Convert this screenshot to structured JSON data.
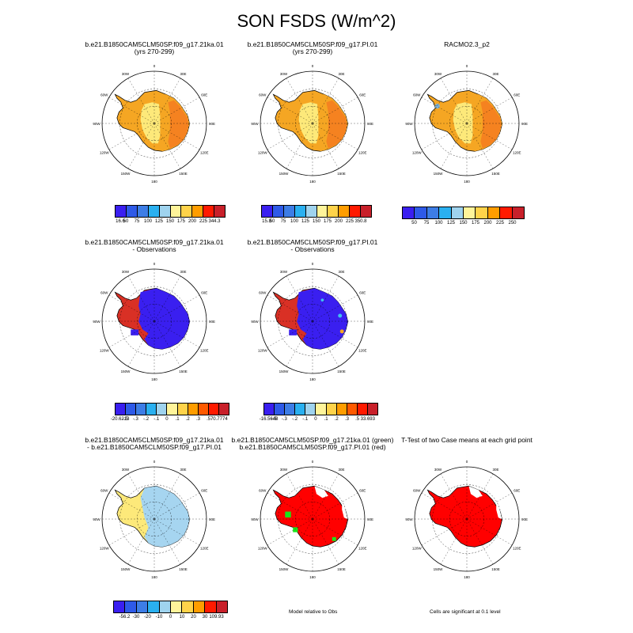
{
  "title": "SON FSDS (W/m^2)",
  "colors": {
    "blue": "#3a1ff0",
    "red": "#d93025",
    "orange": "#f58220",
    "light_orange": "#f5a623",
    "yellow": "#fde97a",
    "light_blue": "#a6d5f0",
    "green": "#19e61a",
    "pure_red": "#ff0000"
  },
  "map_labels": {
    "top": "0",
    "bottom": "180",
    "ring": [
      "30E",
      "60E",
      "90E",
      "120E",
      "150E",
      "150W",
      "120W",
      "90W",
      "60W",
      "30W"
    ]
  },
  "panels": [
    {
      "id": "p1",
      "title1": "b.e21.B1850CAM5CLM50SP.f09_g17.21ka.01",
      "title2": "(yrs 270-299)",
      "kind": "orange"
    },
    {
      "id": "p2",
      "title1": "b.e21.B1850CAM5CLM50SP.f09_g17.PI.01",
      "title2": "(yrs 270-299)",
      "kind": "orange2"
    },
    {
      "id": "p3",
      "title1": "RACMO2.3_p2",
      "title2": "",
      "kind": "orange3"
    },
    {
      "id": "p4",
      "title1": "b.e21.B1850CAM5CLM50SP.f09_g17.21ka.01",
      "title2": "- Observations",
      "kind": "bluered"
    },
    {
      "id": "p5",
      "title1": "b.e21.B1850CAM5CLM50SP.f09_g17.PI.01",
      "title2": "- Observations",
      "kind": "bluered2"
    },
    {
      "id": "p6",
      "title1": "b.e21.B1850CAM5CLM50SP.f09_g17.21ka.01",
      "title2": "- b.e21.B1850CAM5CLM50SP.f09_g17.PI.01",
      "kind": "diff"
    },
    {
      "id": "p7",
      "title1": "b.e21.B1850CAM5CLM50SP.f09_g17.21ka.01 (green)",
      "title2": "b.e21.B1850CAM5CLM50SP.f09_g17.PI.01 (red)",
      "kind": "green"
    },
    {
      "id": "p8",
      "title1": "T-Test of two Case means at each grid point",
      "title2": "",
      "kind": "ttest"
    }
  ],
  "colorbars": [
    {
      "id": "cb1",
      "labels": [
        "16.6",
        "50",
        "75",
        "100",
        "125",
        "150",
        "175",
        "200",
        "225",
        "344.3"
      ],
      "colors": [
        "#3a1ff0",
        "#2e5ae8",
        "#3d7de6",
        "#2ab0f0",
        "#9fd3ee",
        "#fff49a",
        "#ffd34a",
        "#ff9d00",
        "#ff1a00",
        "#c8202a"
      ]
    },
    {
      "id": "cb2",
      "labels": [
        "15.8",
        "50",
        "75",
        "100",
        "125",
        "150",
        "175",
        "200",
        "225",
        "350.8"
      ],
      "colors": [
        "#3a1ff0",
        "#2e5ae8",
        "#3d7de6",
        "#2ab0f0",
        "#9fd3ee",
        "#fff49a",
        "#ffd34a",
        "#ff9d00",
        "#ff1a00",
        "#c8202a"
      ]
    },
    {
      "id": "cb3",
      "labels": [
        "50",
        "75",
        "100",
        "125",
        "150",
        "175",
        "200",
        "225",
        "250"
      ],
      "colors": [
        "#3a1ff0",
        "#2e5ae8",
        "#3d7de6",
        "#2ab0f0",
        "#9fd3ee",
        "#fff49a",
        "#ffd34a",
        "#ff9d00",
        "#ff1a00",
        "#c8202a"
      ]
    },
    {
      "id": "cb4",
      "labels": [
        "-20.6213",
        "-.5",
        "-.3",
        "-.2",
        "-.1",
        "0",
        ".1",
        ".2",
        ".3",
        ".5",
        "70.7774"
      ],
      "colors": [
        "#3a1ff0",
        "#2e5ae8",
        "#3d7de6",
        "#2ab0f0",
        "#9fd3ee",
        "#fff49a",
        "#ffd34a",
        "#ff9d00",
        "#ff5a00",
        "#ff1a00",
        "#c8202a"
      ]
    },
    {
      "id": "cb5",
      "labels": [
        "-16.5648",
        "-.5",
        "-.3",
        "-.2",
        "-.1",
        "0",
        ".1",
        ".2",
        ".3",
        ".5",
        "33.693"
      ],
      "colors": [
        "#3a1ff0",
        "#2e5ae8",
        "#3d7de6",
        "#2ab0f0",
        "#9fd3ee",
        "#fff49a",
        "#ffd34a",
        "#ff9d00",
        "#ff5a00",
        "#ff1a00",
        "#c8202a"
      ]
    },
    {
      "id": "cb6",
      "labels": [
        "-56.2",
        "-30",
        "-20",
        "-10",
        "0",
        "10",
        "20",
        "30",
        "109.93"
      ],
      "colors": [
        "#3a1ff0",
        "#2e5ae8",
        "#3d7de6",
        "#2ab0f0",
        "#9fd3ee",
        "#fff49a",
        "#ffd34a",
        "#ff9d00",
        "#ff1a00",
        "#c8202a"
      ]
    }
  ],
  "notes": {
    "model_relative": "Model relative to Obs",
    "significant": "Cells are significant at 0.1 level"
  },
  "chart_data": {
    "type": "heatmap",
    "title": "SON FSDS (W/m^2)",
    "description_units": "W/m^2",
    "panels": [
      {
        "name": "b.e21.B1850CAM5CLM50SP.f09_g17.21ka.01 (yrs 270-299)",
        "min": 16.6,
        "max": 344.3,
        "levels": [
          50,
          75,
          100,
          125,
          150,
          175,
          200,
          225
        ]
      },
      {
        "name": "b.e21.B1850CAM5CLM50SP.f09_g17.PI.01 (yrs 270-299)",
        "min": 15.8,
        "max": 350.8,
        "levels": [
          50,
          75,
          100,
          125,
          150,
          175,
          200,
          225
        ]
      },
      {
        "name": "RACMO2.3_p2",
        "levels": [
          50,
          75,
          100,
          125,
          150,
          175,
          200,
          225,
          250
        ]
      },
      {
        "name": "21ka.01 - Observations",
        "min": -20.6213,
        "max": 70.7774,
        "levels": [
          -0.5,
          -0.3,
          -0.2,
          -0.1,
          0,
          0.1,
          0.2,
          0.3,
          0.5
        ]
      },
      {
        "name": "PI.01 - Observations",
        "min": -16.5648,
        "max": 33.693,
        "levels": [
          -0.5,
          -0.3,
          -0.2,
          -0.1,
          0,
          0.1,
          0.2,
          0.3,
          0.5
        ]
      },
      {
        "name": "21ka.01 - PI.01",
        "min": -56.2,
        "max": 109.93,
        "levels": [
          -30,
          -20,
          -10,
          0,
          10,
          20,
          30
        ]
      }
    ]
  }
}
